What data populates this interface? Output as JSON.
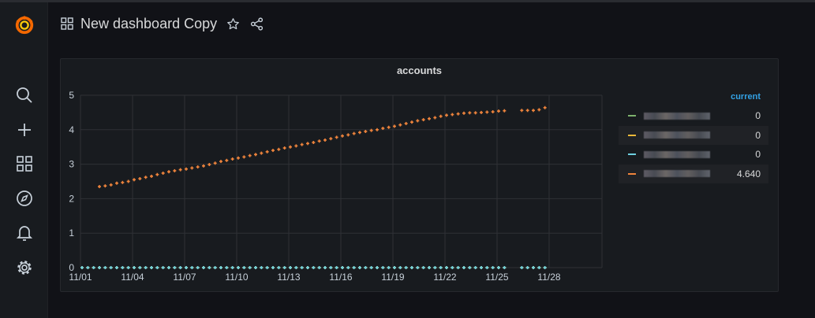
{
  "header": {
    "title": "New dashboard Copy",
    "icons": [
      "dashboard-grid-icon",
      "star-icon",
      "share-icon"
    ]
  },
  "sidebar": {
    "items": [
      {
        "name": "grafana-logo"
      },
      {
        "name": "search-icon"
      },
      {
        "name": "plus-icon"
      },
      {
        "name": "dashboards-icon"
      },
      {
        "name": "explore-compass-icon"
      },
      {
        "name": "alerting-bell-icon"
      },
      {
        "name": "configuration-gear-icon"
      }
    ]
  },
  "panel": {
    "title": "accounts",
    "legend": {
      "header": "current",
      "rows": [
        {
          "color": "#7eb26d",
          "current": "0"
        },
        {
          "color": "#eab839",
          "current": "0"
        },
        {
          "color": "#6ed0e0",
          "current": "0"
        },
        {
          "color": "#ef843c",
          "current": "4.640"
        }
      ]
    }
  },
  "chart_data": {
    "type": "scatter",
    "title": "accounts",
    "x_tick_labels": [
      "11/01",
      "11/04",
      "11/07",
      "11/10",
      "11/13",
      "11/16",
      "11/19",
      "11/22",
      "11/25",
      "11/28"
    ],
    "y_tick_labels": [
      "0",
      "1",
      "2",
      "3",
      "4",
      "5"
    ],
    "xlim": [
      "11/01",
      "12/01"
    ],
    "ylim": [
      0,
      5
    ],
    "grid": true,
    "legend_placement": "right",
    "x_step_hours": 8,
    "x_start": "11/01 00:00",
    "series": [
      {
        "color": "#7eb26d",
        "values": "zero"
      },
      {
        "color": "#eab839",
        "values": "zero"
      },
      {
        "color": "#6ed0e0",
        "values": "zero"
      },
      {
        "color": "#ef843c",
        "values": [
          null,
          null,
          null,
          2.35,
          2.37,
          2.4,
          2.45,
          2.47,
          2.5,
          2.55,
          2.58,
          2.62,
          2.65,
          2.7,
          2.74,
          2.78,
          2.81,
          2.84,
          2.86,
          2.89,
          2.92,
          2.95,
          2.99,
          3.03,
          3.08,
          3.11,
          3.15,
          3.18,
          3.21,
          3.25,
          3.28,
          3.32,
          3.36,
          3.4,
          3.43,
          3.47,
          3.5,
          3.53,
          3.57,
          3.6,
          3.63,
          3.67,
          3.7,
          3.74,
          3.78,
          3.82,
          3.85,
          3.89,
          3.92,
          3.95,
          3.98,
          4.0,
          4.04,
          4.07,
          4.1,
          4.14,
          4.18,
          4.22,
          4.26,
          4.29,
          4.32,
          4.35,
          4.39,
          4.42,
          4.44,
          4.46,
          4.48,
          4.49,
          4.49,
          4.5,
          4.51,
          4.52,
          4.54,
          4.55,
          null,
          null,
          4.56,
          4.56,
          4.56,
          4.58,
          4.64
        ]
      }
    ]
  }
}
